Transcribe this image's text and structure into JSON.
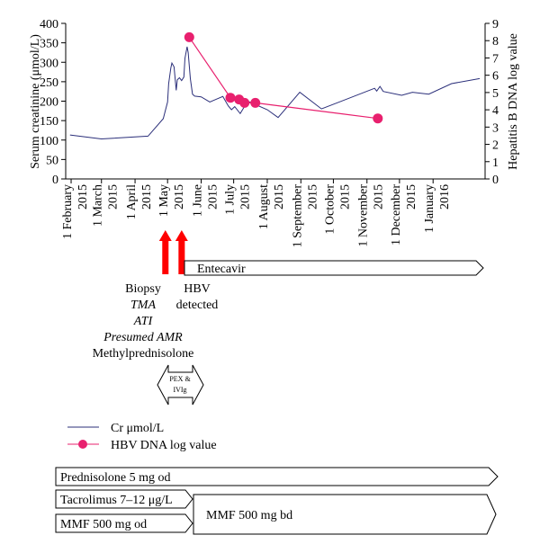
{
  "chart_data": {
    "type": "line",
    "y_left": {
      "label": "Serum creatinine (μmol/L)",
      "ylim": [
        0,
        400
      ],
      "ticks": [
        0,
        50,
        100,
        150,
        200,
        250,
        300,
        350,
        400
      ]
    },
    "y_right": {
      "label": "Hepatitis B DNA log value",
      "ylim": [
        0,
        9
      ],
      "ticks": [
        0,
        1,
        2,
        3,
        4,
        5,
        6,
        7,
        8,
        9
      ]
    },
    "x_ticks": [
      {
        "date": "2015-02-01",
        "label": "1 February 2015"
      },
      {
        "date": "2015-03-01",
        "label": "1 March 2015"
      },
      {
        "date": "2015-04-01",
        "label": "1 April 2015"
      },
      {
        "date": "2015-05-01",
        "label": "1 May 2015"
      },
      {
        "date": "2015-06-01",
        "label": "1 June 2015"
      },
      {
        "date": "2015-07-01",
        "label": "1 July 2015"
      },
      {
        "date": "2015-08-01",
        "label": "1 August 2015"
      },
      {
        "date": "2015-09-01",
        "label": "1 September 2015"
      },
      {
        "date": "2015-10-01",
        "label": "1 October 2015"
      },
      {
        "date": "2015-11-01",
        "label": "1 November 2015"
      },
      {
        "date": "2015-12-01",
        "label": "1 December 2015"
      },
      {
        "date": "2016-01-01",
        "label": "1 January 2016"
      }
    ],
    "series": [
      {
        "name": "Cr μmol/L",
        "axis": "left",
        "color": "#2b2f7a",
        "points": [
          [
            "2015-01-31",
            113
          ],
          [
            "2015-03-01",
            103
          ],
          [
            "2015-04-13",
            110
          ],
          [
            "2015-04-27",
            155
          ],
          [
            "2015-05-01",
            198
          ],
          [
            "2015-05-02",
            245
          ],
          [
            "2015-05-04",
            285
          ],
          [
            "2015-05-05",
            298
          ],
          [
            "2015-05-07",
            288
          ],
          [
            "2015-05-09",
            228
          ],
          [
            "2015-05-10",
            255
          ],
          [
            "2015-05-12",
            260
          ],
          [
            "2015-05-14",
            253
          ],
          [
            "2015-05-16",
            262
          ],
          [
            "2015-05-17",
            310
          ],
          [
            "2015-05-19",
            340
          ],
          [
            "2015-05-20",
            325
          ],
          [
            "2015-05-22",
            258
          ],
          [
            "2015-05-24",
            218
          ],
          [
            "2015-05-26",
            213
          ],
          [
            "2015-06-01",
            211
          ],
          [
            "2015-06-09",
            198
          ],
          [
            "2015-06-15",
            205
          ],
          [
            "2015-06-21",
            212
          ],
          [
            "2015-06-26",
            188
          ],
          [
            "2015-06-29",
            178
          ],
          [
            "2015-07-02",
            186
          ],
          [
            "2015-07-07",
            168
          ],
          [
            "2015-07-14",
            200
          ],
          [
            "2015-08-01",
            178
          ],
          [
            "2015-08-11",
            158
          ],
          [
            "2015-08-31",
            223
          ],
          [
            "2015-09-20",
            180
          ],
          [
            "2015-11-08",
            233
          ],
          [
            "2015-11-10",
            226
          ],
          [
            "2015-11-13",
            238
          ],
          [
            "2015-11-16",
            225
          ],
          [
            "2015-12-03",
            215
          ],
          [
            "2015-12-13",
            223
          ],
          [
            "2015-12-28",
            218
          ],
          [
            "2016-01-18",
            245
          ],
          [
            "2016-02-13",
            258
          ]
        ]
      },
      {
        "name": "HBV DNA log value",
        "axis": "right",
        "color": "#e8206e",
        "points": [
          [
            "2015-05-21",
            8.2
          ],
          [
            "2015-06-28",
            4.7
          ],
          [
            "2015-07-06",
            4.6
          ],
          [
            "2015-07-11",
            4.4
          ],
          [
            "2015-07-21",
            4.4
          ],
          [
            "2015-11-11",
            3.5
          ]
        ]
      }
    ]
  },
  "events": [
    {
      "label_lines": [
        "Biopsy",
        "TMA",
        "ATI",
        "Presumed AMR",
        "Methylprednisolone"
      ],
      "date": "2015-04-29"
    },
    {
      "label_lines": [
        "HBV",
        "detected"
      ],
      "date": "2015-05-14"
    }
  ],
  "bars": {
    "entecavir": "Entecavir",
    "pex": "PEX & IVIg",
    "prednisolone": "Prednisolone 5 mg od",
    "tacrolimus": "Tacrolimus 7–12 μg/L",
    "mmf1": "MMF 500 mg od",
    "mmf2": "MMF 500 mg bd"
  },
  "legend": {
    "cr": "Cr μmol/L",
    "hbv": "HBV DNA log value"
  },
  "colors": {
    "cr": "#2b2f7a",
    "hbv": "#e8206e",
    "arrow": "#ff0000"
  }
}
